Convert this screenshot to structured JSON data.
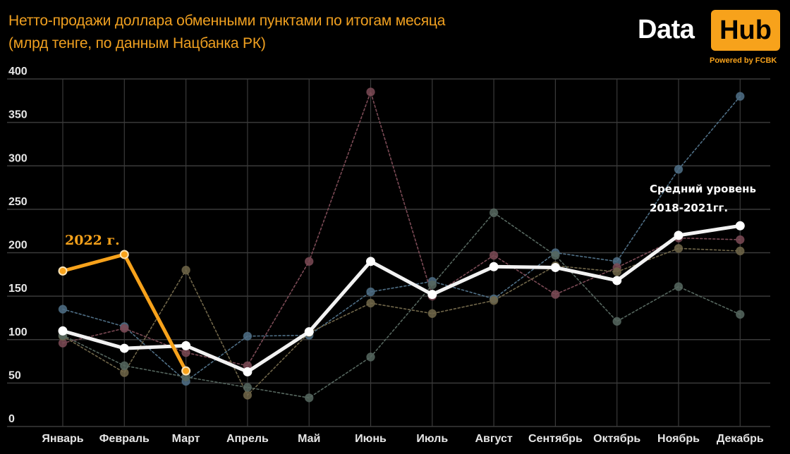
{
  "header": {
    "title_line1": "Нетто-продажи доллара обменными пунктами по итогам месяца",
    "title_line2": "(млрд тенге, по данным Нацбанка РК)"
  },
  "logo": {
    "data": "Data",
    "hub": "Hub",
    "powered": "Powered by FCBK",
    "accent_color": "#f7a21b"
  },
  "annotations": {
    "current_year": "2022 г.",
    "average_line1": "Средний уровень",
    "average_line2": "2018-2021гг."
  },
  "chart_data": {
    "type": "line",
    "title": "Нетто-продажи доллара обменными пунктами по итогам месяца (млрд тенге, по данным Нацбанка РК)",
    "xlabel": "",
    "ylabel": "млрд тенге",
    "ylim": [
      0,
      400
    ],
    "yticks": [
      0,
      50,
      100,
      150,
      200,
      250,
      300,
      350,
      400
    ],
    "grid": true,
    "legend": "none (inline annotations)",
    "categories": [
      "Январь",
      "Февраль",
      "Март",
      "Апрель",
      "Май",
      "Июнь",
      "Июль",
      "Август",
      "Сентябрь",
      "Октябрь",
      "Ноябрь",
      "Декабрь"
    ],
    "series": [
      {
        "name": "Series A (blue)",
        "style": "dashed",
        "color": "#4f6f86",
        "values": [
          135,
          115,
          52,
          104,
          105,
          155,
          167,
          147,
          200,
          190,
          296,
          380
        ]
      },
      {
        "name": "Series B (red)",
        "style": "dashed",
        "color": "#7b4a55",
        "values": [
          96,
          113,
          85,
          70,
          190,
          385,
          150,
          197,
          152,
          183,
          217,
          215
        ]
      },
      {
        "name": "Series C (olive)",
        "style": "dashed",
        "color": "#706649",
        "values": [
          104,
          62,
          180,
          36,
          108,
          142,
          130,
          145,
          185,
          178,
          205,
          202
        ]
      },
      {
        "name": "Series D (gray-green)",
        "style": "dashed",
        "color": "#56675f",
        "values": [
          105,
          70,
          57,
          45,
          33,
          80,
          163,
          246,
          197,
          121,
          161,
          129
        ]
      },
      {
        "name": "Средний уровень 2018-2021гг.",
        "style": "solid",
        "color": "#f2f2f2",
        "values": [
          110,
          90,
          93,
          63,
          109,
          190,
          152,
          184,
          183,
          168,
          220,
          231
        ]
      },
      {
        "name": "2022 г.",
        "style": "solid",
        "color": "#f7a21b",
        "values": [
          179,
          198,
          64,
          null,
          null,
          null,
          null,
          null,
          null,
          null,
          null,
          null
        ]
      }
    ]
  }
}
